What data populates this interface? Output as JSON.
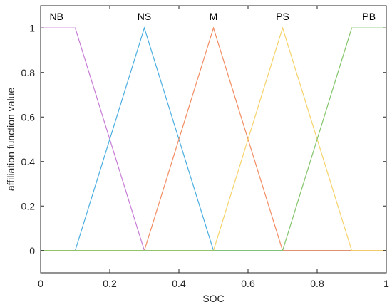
{
  "chart_data": {
    "type": "line",
    "title": "",
    "xlabel": "SOC",
    "ylabel": "affiliation function value",
    "xlim": [
      0,
      1
    ],
    "ylim": [
      -0.1,
      1.1
    ],
    "xticks": [
      0,
      0.2,
      0.4,
      0.6,
      0.8,
      1
    ],
    "xtick_labels": [
      "0",
      "0.2",
      "0.4",
      "0.6",
      "0.8",
      "1"
    ],
    "yticks": [
      0,
      0.2,
      0.4,
      0.6,
      0.8,
      1
    ],
    "ytick_labels": [
      "0",
      "0.2",
      "0.4",
      "0.6",
      "0.8",
      "1"
    ],
    "grid": false,
    "series": [
      {
        "name": "NB",
        "color": "#c77cd6",
        "x": [
          0,
          0.1,
          0.3,
          1
        ],
        "y": [
          1,
          1,
          0,
          0
        ]
      },
      {
        "name": "NS",
        "color": "#4aaee0",
        "x": [
          0,
          0.1,
          0.3,
          0.5,
          1
        ],
        "y": [
          0,
          0,
          1,
          0,
          0
        ]
      },
      {
        "name": "M",
        "color": "#f28c62",
        "x": [
          0,
          0.3,
          0.5,
          0.7,
          1
        ],
        "y": [
          0,
          0,
          1,
          0,
          0
        ]
      },
      {
        "name": "PS",
        "color": "#f5d36a",
        "x": [
          0,
          0.5,
          0.7,
          0.9,
          1
        ],
        "y": [
          0,
          0,
          1,
          0,
          0
        ]
      },
      {
        "name": "PB",
        "color": "#84c46a",
        "x": [
          0,
          0.7,
          0.9,
          1
        ],
        "y": [
          0,
          0,
          1,
          1
        ]
      }
    ],
    "series_label_x": [
      0.05,
      0.3,
      0.5,
      0.7,
      0.95
    ]
  }
}
